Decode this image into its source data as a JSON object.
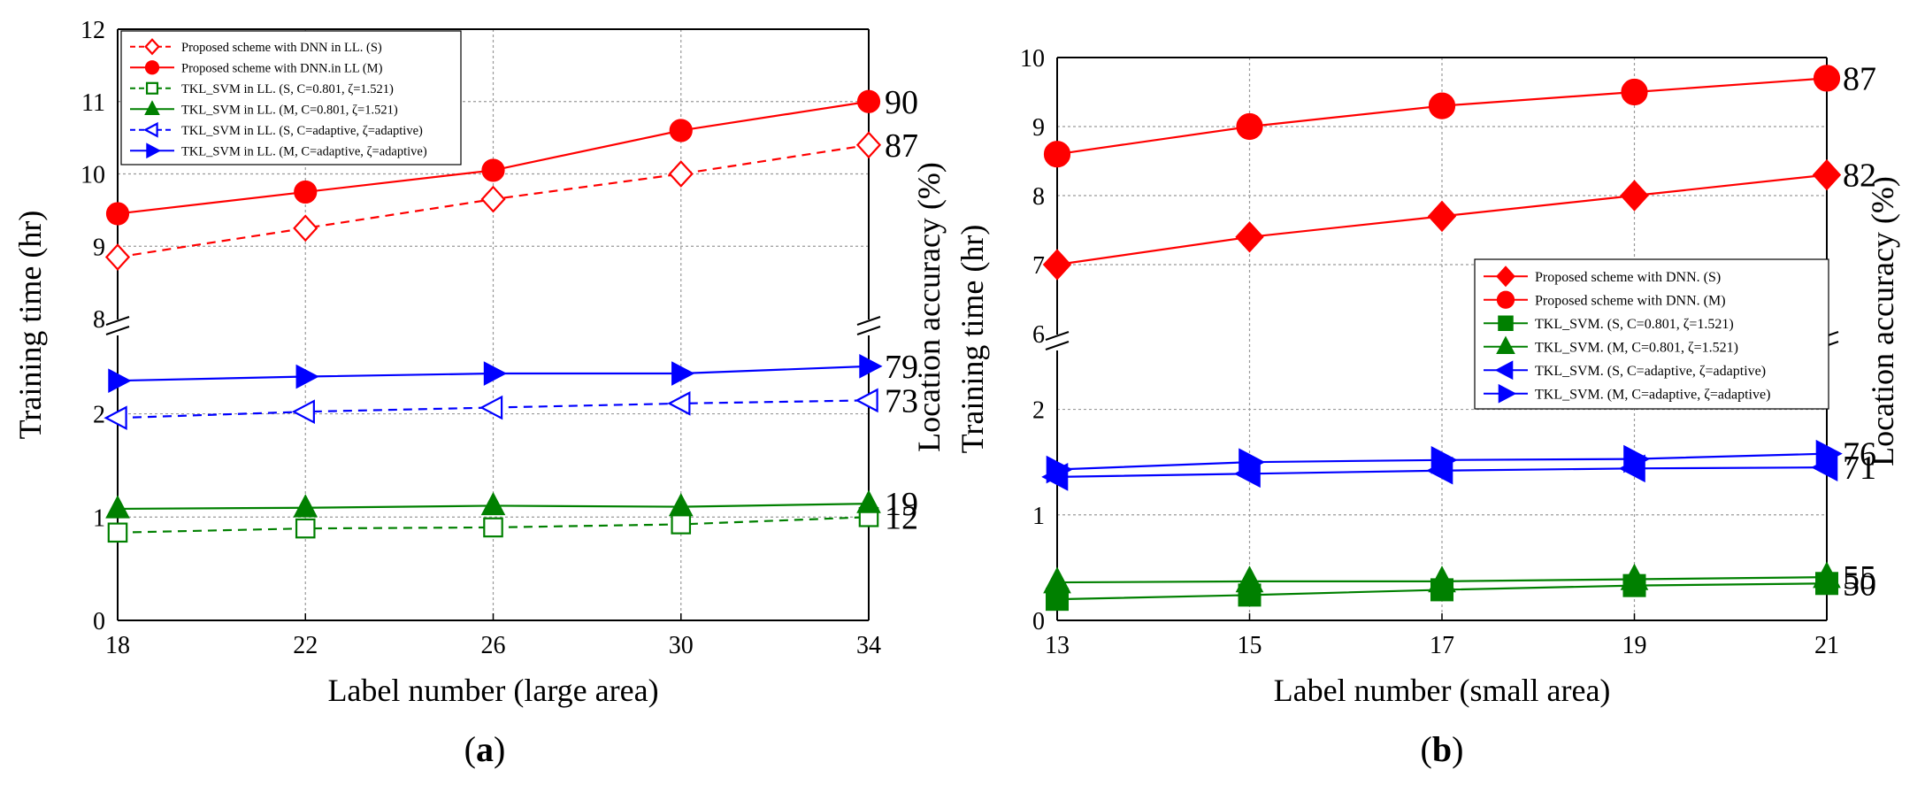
{
  "chart_data": [
    {
      "id": "a",
      "type": "line",
      "panel_label": "a",
      "xlabel": "Label number (large area)",
      "ylabel": "Training time (hr)",
      "ylabel_right": "Location accuracy (%)",
      "x": [
        18,
        22,
        26,
        30,
        34
      ],
      "xticks": [
        "18",
        "22",
        "26",
        "30",
        "34"
      ],
      "upper_yticks": [
        "8",
        "9",
        "10",
        "11",
        "12"
      ],
      "lower_yticks": [
        "0",
        "1",
        "2"
      ],
      "upper_ylim": [
        8,
        12
      ],
      "lower_ylim": [
        0,
        2.75
      ],
      "grid": true,
      "legend": {
        "placement": "top-left"
      },
      "series": [
        {
          "name": "Proposed scheme with DNN in LL. (S)",
          "color": "#ff0000",
          "marker": "diamond-open",
          "dash": true,
          "axis": "upper",
          "values": [
            8.85,
            9.25,
            9.65,
            10.0,
            10.4
          ],
          "end_label": "87"
        },
        {
          "name": "Proposed scheme with DNN.in LL (M)",
          "color": "#ff0000",
          "marker": "circle",
          "dash": false,
          "axis": "upper",
          "values": [
            9.45,
            9.75,
            10.05,
            10.6,
            11.0
          ],
          "end_label": "90"
        },
        {
          "name": "TKL_SVM in LL. (S, C=0.801, ζ=1.521)",
          "color": "#008000",
          "marker": "square-open",
          "dash": true,
          "axis": "lower",
          "values": [
            0.85,
            0.89,
            0.9,
            0.93,
            1.0
          ],
          "end_label": "12"
        },
        {
          "name": "TKL_SVM in LL. (M, C=0.801, ζ=1.521)",
          "color": "#008000",
          "marker": "triangle-up",
          "dash": false,
          "axis": "lower",
          "values": [
            1.08,
            1.09,
            1.11,
            1.1,
            1.13
          ],
          "end_label": "19"
        },
        {
          "name": "TKL_SVM in LL. (S, C=adaptive, ζ=adaptive)",
          "color": "#0000ff",
          "marker": "triangle-left-open",
          "dash": true,
          "axis": "lower",
          "values": [
            1.96,
            2.02,
            2.06,
            2.1,
            2.13
          ],
          "end_label": "73"
        },
        {
          "name": "TKL_SVM in LL. (M, C=adaptive, ζ=adaptive)",
          "color": "#0000ff",
          "marker": "triangle-right",
          "dash": false,
          "axis": "lower",
          "values": [
            2.32,
            2.36,
            2.39,
            2.39,
            2.46
          ],
          "end_label": "79"
        }
      ]
    },
    {
      "id": "b",
      "type": "line",
      "panel_label": "b",
      "xlabel": "Label number (small area)",
      "ylabel": "Training time (hr)",
      "ylabel_right": "Location accuracy (%)",
      "x": [
        13,
        15,
        17,
        19,
        21
      ],
      "xticks": [
        "13",
        "15",
        "17",
        "19",
        "21"
      ],
      "upper_yticks": [
        "6",
        "7",
        "8",
        "9",
        "10"
      ],
      "lower_yticks": [
        "0",
        "1",
        "2"
      ],
      "upper_ylim": [
        6,
        10
      ],
      "lower_ylim": [
        0,
        2.55
      ],
      "grid": true,
      "legend": {
        "placement": "center-right"
      },
      "series": [
        {
          "name": "Proposed scheme with DNN. (S)",
          "color": "#ff0000",
          "marker": "diamond",
          "dash": false,
          "axis": "upper",
          "values": [
            7.0,
            7.4,
            7.7,
            8.0,
            8.3
          ],
          "end_label": "82"
        },
        {
          "name": "Proposed scheme with DNN. (M)",
          "color": "#ff0000",
          "marker": "circle",
          "dash": false,
          "axis": "upper",
          "values": [
            8.6,
            9.0,
            9.3,
            9.5,
            9.7
          ],
          "end_label": "87"
        },
        {
          "name": "TKL_SVM. (S, C=0.801, ζ=1.521)",
          "color": "#008000",
          "marker": "square",
          "dash": false,
          "axis": "lower",
          "values": [
            0.2,
            0.24,
            0.29,
            0.33,
            0.35
          ],
          "end_label": "50"
        },
        {
          "name": "TKL_SVM. (M, C=0.801, ζ=1.521)",
          "color": "#008000",
          "marker": "triangle-up",
          "dash": false,
          "axis": "lower",
          "values": [
            0.36,
            0.37,
            0.37,
            0.39,
            0.41
          ],
          "end_label": "55"
        },
        {
          "name": "TKL_SVM. (S, C=adaptive, ζ=adaptive)",
          "color": "#0000ff",
          "marker": "triangle-left",
          "dash": false,
          "axis": "lower",
          "values": [
            1.36,
            1.39,
            1.42,
            1.44,
            1.45
          ],
          "end_label": "71"
        },
        {
          "name": "TKL_SVM. (M, C=adaptive, ζ=adaptive)",
          "color": "#0000ff",
          "marker": "triangle-right",
          "dash": false,
          "axis": "lower",
          "values": [
            1.43,
            1.5,
            1.52,
            1.53,
            1.58
          ],
          "end_label": "76"
        }
      ]
    }
  ]
}
